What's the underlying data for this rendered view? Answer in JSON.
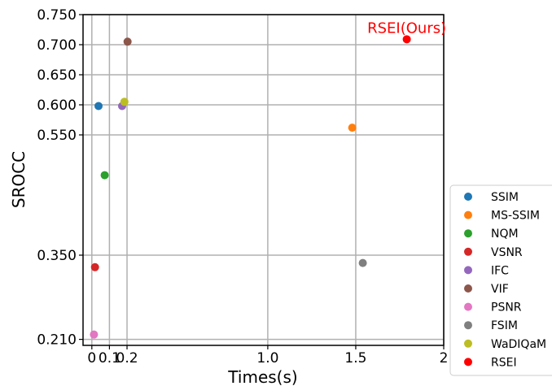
{
  "chart_data": {
    "type": "scatter",
    "xlabel": "Times(s)",
    "ylabel": "SROCC",
    "xlim": [
      -0.05,
      2.0
    ],
    "ylim": [
      0.2,
      0.75
    ],
    "x_ticks": [
      {
        "value": 0,
        "label": "0"
      },
      {
        "value": 0.1,
        "label": "0.1"
      },
      {
        "value": 0.2,
        "label": "0.2"
      },
      {
        "value": 1.0,
        "label": "1.0"
      },
      {
        "value": 1.5,
        "label": "1.5"
      },
      {
        "value": 2.0,
        "label": "2"
      }
    ],
    "y_ticks": [
      {
        "value": 0.21,
        "label": "0.210"
      },
      {
        "value": 0.35,
        "label": "0.350"
      },
      {
        "value": 0.55,
        "label": "0.550"
      },
      {
        "value": 0.6,
        "label": "0.600"
      },
      {
        "value": 0.65,
        "label": "0.650"
      },
      {
        "value": 0.7,
        "label": "0.700"
      },
      {
        "value": 0.75,
        "label": "0.750"
      }
    ],
    "grid": true,
    "legend_position": "right",
    "series": [
      {
        "name": "SSIM",
        "color": "#1f77b4",
        "x": 0.038,
        "y": 0.598
      },
      {
        "name": "MS-SSIM",
        "color": "#ff7f0e",
        "x": 1.48,
        "y": 0.562
      },
      {
        "name": "NQM",
        "color": "#2ca02c",
        "x": 0.073,
        "y": 0.483
      },
      {
        "name": "VSNR",
        "color": "#d62728",
        "x": 0.018,
        "y": 0.33
      },
      {
        "name": "IFC",
        "color": "#9467bd",
        "x": 0.172,
        "y": 0.598
      },
      {
        "name": "VIF",
        "color": "#8c564b",
        "x": 0.203,
        "y": 0.705
      },
      {
        "name": "PSNR",
        "color": "#e377c2",
        "x": 0.012,
        "y": 0.218
      },
      {
        "name": "FSIM",
        "color": "#7f7f7f",
        "x": 1.54,
        "y": 0.337
      },
      {
        "name": "WaDIQaM",
        "color": "#bcbd22",
        "x": 0.185,
        "y": 0.605
      },
      {
        "name": "RSEI",
        "color": "#ff0000",
        "x": 1.79,
        "y": 0.709
      }
    ],
    "annotations": [
      {
        "text": "RSEI(Ours)",
        "x": 1.79,
        "y": 0.709,
        "color": "#ff0000"
      }
    ]
  }
}
